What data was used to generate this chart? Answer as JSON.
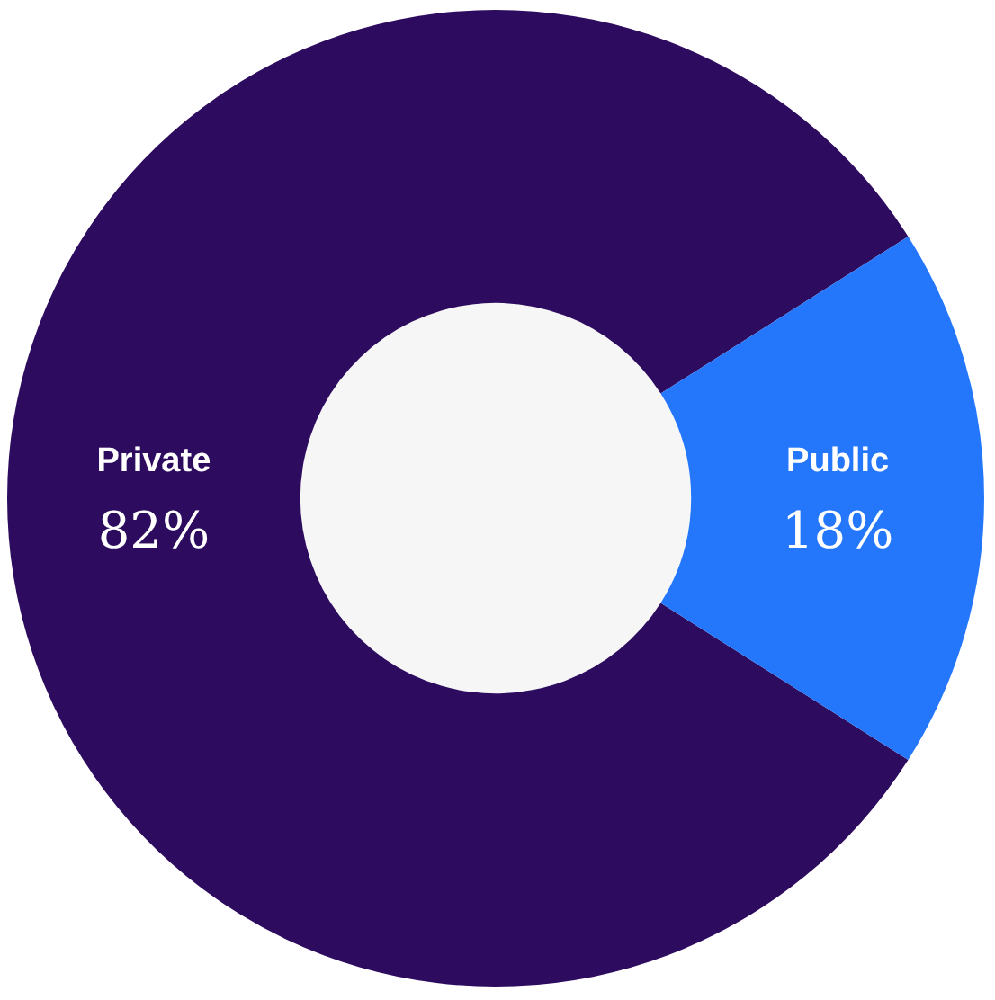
{
  "chart_data": {
    "type": "donut",
    "categories": [
      "Private",
      "Public"
    ],
    "values": [
      82,
      18
    ],
    "colors": [
      "#2d0b5f",
      "#2477fb"
    ],
    "value_labels": [
      "82%",
      "18%"
    ]
  }
}
